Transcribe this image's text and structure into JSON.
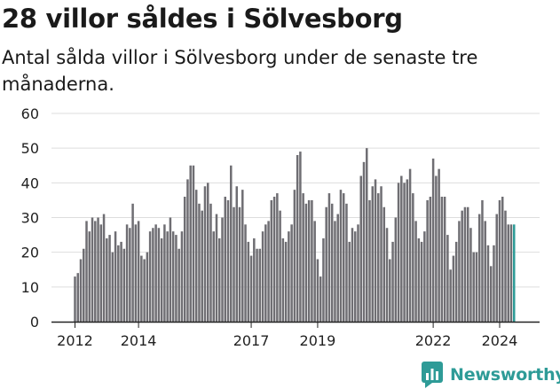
{
  "header": {
    "title": "28 villor såldes i Sölvesborg",
    "subtitle": "Antal sålda villor i Sölvesborg under de senaste tre månaderna."
  },
  "brand": {
    "name": "Newsworthy",
    "color": "#2e9b97"
  },
  "colors": {
    "bar": "#6f6e73",
    "highlight": "#2e9b97",
    "grid": "#dddddd",
    "axis": "#222222"
  },
  "chart_data": {
    "type": "bar",
    "title": "28 villor såldes i Sölvesborg",
    "ylabel": "",
    "xlabel": "",
    "ylim": [
      0,
      60
    ],
    "yticks": [
      0,
      10,
      20,
      30,
      40,
      50,
      60
    ],
    "xticks": [
      "2012",
      "2014",
      "2017",
      "2019",
      "2022",
      "2024"
    ],
    "xtick_positions": [
      0,
      22,
      61,
      84,
      124,
      147
    ],
    "annotation": {
      "label": "28",
      "index": 162
    },
    "values": [
      13,
      14,
      18,
      21,
      29,
      26,
      30,
      29,
      30,
      28,
      31,
      24,
      25,
      20,
      26,
      22,
      23,
      21,
      28,
      27,
      34,
      28,
      29,
      19,
      18,
      20,
      26,
      27,
      28,
      27,
      24,
      28,
      26,
      30,
      26,
      25,
      21,
      26,
      36,
      41,
      45,
      45,
      38,
      34,
      32,
      39,
      40,
      34,
      26,
      31,
      24,
      30,
      36,
      35,
      45,
      33,
      39,
      33,
      38,
      28,
      23,
      19,
      24,
      21,
      21,
      26,
      28,
      29,
      35,
      36,
      37,
      32,
      24,
      23,
      26,
      28,
      38,
      48,
      49,
      37,
      34,
      35,
      35,
      29,
      18,
      13,
      24,
      33,
      37,
      34,
      29,
      31,
      38,
      37,
      34,
      23,
      27,
      26,
      28,
      42,
      46,
      50,
      35,
      39,
      41,
      37,
      39,
      33,
      27,
      18,
      23,
      30,
      40,
      42,
      40,
      41,
      44,
      37,
      29,
      24,
      23,
      26,
      35,
      36,
      47,
      42,
      44,
      36,
      36,
      25,
      15,
      19,
      23,
      29,
      32,
      33,
      33,
      27,
      20,
      20,
      31,
      35,
      29,
      22,
      16,
      22,
      31,
      35,
      36,
      32,
      28,
      28,
      28
    ]
  }
}
